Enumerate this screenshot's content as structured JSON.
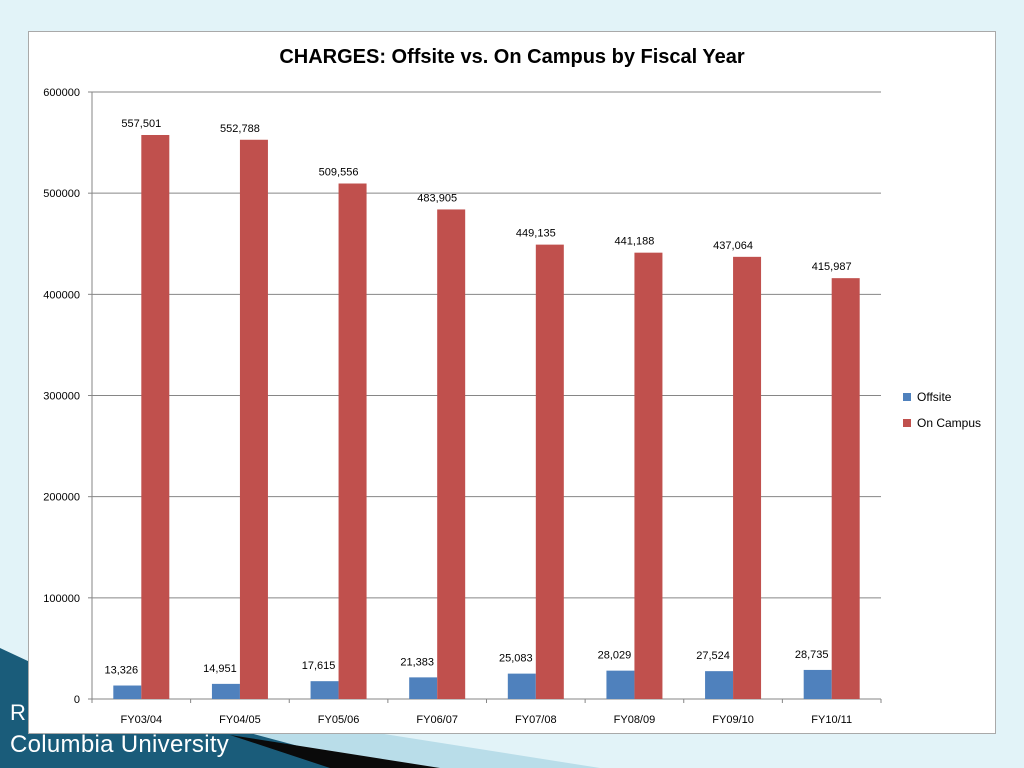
{
  "footer": {
    "line1": "R",
    "line2": "Columbia University"
  },
  "colors": {
    "background": "#e2f3f8",
    "offsite": "#4f81bd",
    "on_campus": "#c0504d",
    "footer_band": "#1a5c7a"
  },
  "chart_data": {
    "type": "bar",
    "title": "CHARGES: Offsite vs. On Campus by Fiscal Year",
    "xlabel": "",
    "ylabel": "",
    "categories": [
      "FY03/04",
      "FY04/05",
      "FY05/06",
      "FY06/07",
      "FY07/08",
      "FY08/09",
      "FY09/10",
      "FY10/11"
    ],
    "series": [
      {
        "name": "Offsite",
        "color": "#4f81bd",
        "values": [
          13326,
          14951,
          17615,
          21383,
          25083,
          28029,
          27524,
          28735
        ],
        "labels": [
          "13,326",
          "14,951",
          "17,615",
          "21,383",
          "25,083",
          "28,029",
          "27,524",
          "28,735"
        ]
      },
      {
        "name": "On Campus",
        "color": "#c0504d",
        "values": [
          557501,
          552788,
          509556,
          483905,
          449135,
          441188,
          437064,
          415987
        ],
        "labels": [
          "557,501",
          "552,788",
          "509,556",
          "483,905",
          "449,135",
          "441,188",
          "437,064",
          "415,987"
        ]
      }
    ],
    "ylim": [
      0,
      600000
    ],
    "yticks": [
      "0",
      "100000",
      "200000",
      "300000",
      "400000",
      "500000",
      "600000"
    ],
    "grid": true,
    "legend_position": "right"
  }
}
